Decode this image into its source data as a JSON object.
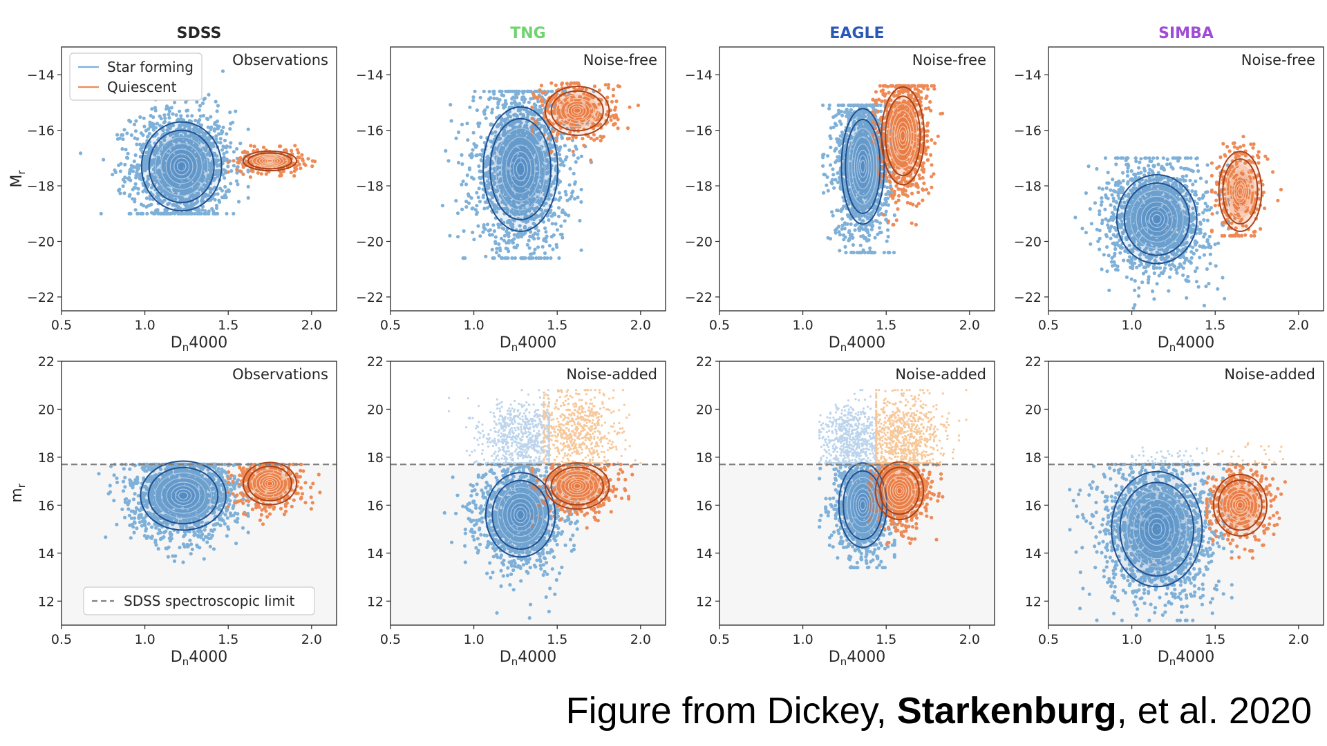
{
  "caption": {
    "prefix": "Figure from Dickey, ",
    "bold": "Starkenburg",
    "suffix": ", et al. 2020"
  },
  "colors": {
    "star_forming_points": "#7eb0d8",
    "star_forming_contour": "#1f4f8f",
    "quiescent_points": "#ee8a55",
    "quiescent_contour": "#a8421a",
    "star_forming_faint": "#bcd4ec",
    "quiescent_faint": "#f6c89a",
    "limit_line": "#808080",
    "limit_fill": "#f6f6f6"
  },
  "chart_data": [
    {
      "type": "scatter",
      "row": 0,
      "col": 0,
      "title": "SDSS",
      "title_color": "#262626",
      "corner_label": "Observations",
      "xlabel": "Dn4000",
      "ylabel": "Mr",
      "xlim": [
        0.5,
        2.15
      ],
      "ylim": [
        -13,
        -22.5
      ],
      "xticks": [
        0.5,
        1.0,
        1.5,
        2.0
      ],
      "yticks": [
        -22,
        -20,
        -18,
        -16,
        -14
      ],
      "legend": [
        "Star forming",
        "Quiescent"
      ],
      "series": [
        {
          "name": "Star forming",
          "center": [
            1.22,
            -17.3
          ],
          "spread": [
            0.15,
            1.0
          ],
          "n": 1500,
          "xrange": [
            0.55,
            1.62
          ],
          "yrange": [
            -19.0,
            -13.2
          ]
        },
        {
          "name": "Quiescent",
          "center": [
            1.75,
            -17.1
          ],
          "spread": [
            0.1,
            0.22
          ],
          "n": 250,
          "xrange": [
            1.5,
            2.02
          ],
          "yrange": [
            -17.7,
            -16.2
          ]
        }
      ]
    },
    {
      "type": "scatter",
      "row": 0,
      "col": 1,
      "title": "TNG",
      "title_color": "#6fd36f",
      "corner_label": "Noise-free",
      "xlabel": "Dn4000",
      "ylabel": "",
      "xlim": [
        0.5,
        2.15
      ],
      "ylim": [
        -13,
        -22.5
      ],
      "xticks": [
        0.5,
        1.0,
        1.5,
        2.0
      ],
      "yticks": [
        -22,
        -20,
        -18,
        -16,
        -14
      ],
      "series": [
        {
          "name": "Star forming",
          "center": [
            1.28,
            -17.4
          ],
          "spread": [
            0.14,
            1.4
          ],
          "n": 1700,
          "xrange": [
            0.62,
            1.72
          ],
          "yrange": [
            -20.6,
            -14.6
          ]
        },
        {
          "name": "Quiescent",
          "center": [
            1.62,
            -15.3
          ],
          "spread": [
            0.12,
            0.55
          ],
          "n": 350,
          "xrange": [
            1.35,
            2.1
          ],
          "yrange": [
            -19.0,
            -14.3
          ]
        }
      ]
    },
    {
      "type": "scatter",
      "row": 0,
      "col": 2,
      "title": "EAGLE",
      "title_color": "#2a58b8",
      "corner_label": "Noise-free",
      "xlabel": "Dn4000",
      "ylabel": "",
      "xlim": [
        0.5,
        2.15
      ],
      "ylim": [
        -13,
        -22.5
      ],
      "xticks": [
        0.5,
        1.0,
        1.5,
        2.0
      ],
      "yticks": [
        -22,
        -20,
        -18,
        -16,
        -14
      ],
      "series": [
        {
          "name": "Star forming",
          "center": [
            1.36,
            -17.3
          ],
          "spread": [
            0.08,
            1.3
          ],
          "n": 1400,
          "xrange": [
            1.12,
            1.55
          ],
          "yrange": [
            -20.4,
            -15.1
          ]
        },
        {
          "name": "Quiescent",
          "center": [
            1.6,
            -16.2
          ],
          "spread": [
            0.08,
            1.1
          ],
          "n": 800,
          "xrange": [
            1.42,
            1.95
          ],
          "yrange": [
            -19.4,
            -14.4
          ]
        }
      ]
    },
    {
      "type": "scatter",
      "row": 0,
      "col": 3,
      "title": "SIMBA",
      "title_color": "#9f4bd6",
      "corner_label": "Noise-free",
      "xlabel": "Dn4000",
      "ylabel": "",
      "xlim": [
        0.5,
        2.15
      ],
      "ylim": [
        -13,
        -22.5
      ],
      "xticks": [
        0.5,
        1.0,
        1.5,
        2.0
      ],
      "yticks": [
        -22,
        -20,
        -18,
        -16,
        -14
      ],
      "series": [
        {
          "name": "Star forming",
          "center": [
            1.15,
            -19.2
          ],
          "spread": [
            0.15,
            1.0
          ],
          "n": 1500,
          "xrange": [
            0.55,
            1.58
          ],
          "yrange": [
            -22.4,
            -17.0
          ]
        },
        {
          "name": "Quiescent",
          "center": [
            1.65,
            -18.2
          ],
          "spread": [
            0.08,
            0.9
          ],
          "n": 260,
          "xrange": [
            1.48,
            2.1
          ],
          "yrange": [
            -19.8,
            -15.8
          ]
        }
      ]
    },
    {
      "type": "scatter",
      "row": 1,
      "col": 0,
      "title": "",
      "corner_label": "Observations",
      "xlabel": "Dn4000",
      "ylabel": "mr",
      "xlim": [
        0.5,
        2.15
      ],
      "ylim": [
        22,
        11
      ],
      "xticks": [
        0.5,
        1.0,
        1.5,
        2.0
      ],
      "yticks": [
        12,
        14,
        16,
        18,
        20,
        22
      ],
      "spectroscopic_limit": 17.7,
      "limit_legend": "SDSS spectroscopic limit",
      "series": [
        {
          "name": "Star forming",
          "center": [
            1.23,
            16.4
          ],
          "spread": [
            0.16,
            0.9
          ],
          "n": 1500,
          "xrange": [
            0.52,
            1.62
          ],
          "yrange": [
            11.3,
            17.7
          ]
        },
        {
          "name": "Quiescent",
          "center": [
            1.75,
            16.9
          ],
          "spread": [
            0.1,
            0.55
          ],
          "n": 450,
          "xrange": [
            1.5,
            2.05
          ],
          "yrange": [
            14.6,
            17.7
          ]
        }
      ]
    },
    {
      "type": "scatter",
      "row": 1,
      "col": 1,
      "title": "",
      "corner_label": "Noise-added",
      "xlabel": "Dn4000",
      "ylabel": "",
      "xlim": [
        0.5,
        2.15
      ],
      "ylim": [
        22,
        11
      ],
      "xticks": [
        0.5,
        1.0,
        1.5,
        2.0
      ],
      "yticks": [
        12,
        14,
        16,
        18,
        20,
        22
      ],
      "spectroscopic_limit": 17.7,
      "series": [
        {
          "name": "Star forming",
          "center": [
            1.28,
            15.6
          ],
          "spread": [
            0.13,
            1.1
          ],
          "n": 1300,
          "xrange": [
            0.72,
            1.62
          ],
          "yrange": [
            11.3,
            17.7
          ]
        },
        {
          "name": "Quiescent",
          "center": [
            1.62,
            16.8
          ],
          "spread": [
            0.12,
            0.6
          ],
          "n": 450,
          "xrange": [
            1.35,
            1.95
          ],
          "yrange": [
            14.8,
            17.7
          ]
        },
        {
          "name": "Star forming (faint)",
          "center": [
            1.3,
            18.8
          ],
          "spread": [
            0.13,
            0.8
          ],
          "n": 700,
          "xrange": [
            0.85,
            1.45
          ],
          "yrange": [
            17.75,
            20.8
          ]
        },
        {
          "name": "Quiescent (faint)",
          "center": [
            1.62,
            19.0
          ],
          "spread": [
            0.13,
            0.9
          ],
          "n": 600,
          "xrange": [
            1.42,
            2.0
          ],
          "yrange": [
            17.75,
            20.8
          ]
        }
      ]
    },
    {
      "type": "scatter",
      "row": 1,
      "col": 2,
      "title": "",
      "corner_label": "Noise-added",
      "xlabel": "Dn4000",
      "ylabel": "",
      "xlim": [
        0.5,
        2.15
      ],
      "ylim": [
        22,
        11
      ],
      "xticks": [
        0.5,
        1.0,
        1.5,
        2.0
      ],
      "yticks": [
        12,
        14,
        16,
        18,
        20,
        22
      ],
      "spectroscopic_limit": 17.7,
      "series": [
        {
          "name": "Star forming",
          "center": [
            1.36,
            16.0
          ],
          "spread": [
            0.09,
            1.1
          ],
          "n": 1000,
          "xrange": [
            1.1,
            1.55
          ],
          "yrange": [
            13.4,
            17.7
          ]
        },
        {
          "name": "Quiescent",
          "center": [
            1.58,
            16.6
          ],
          "spread": [
            0.09,
            0.75
          ],
          "n": 700,
          "xrange": [
            1.4,
            1.95
          ],
          "yrange": [
            13.6,
            17.7
          ]
        },
        {
          "name": "Star forming (faint)",
          "center": [
            1.3,
            18.6
          ],
          "spread": [
            0.1,
            0.8
          ],
          "n": 700,
          "xrange": [
            1.1,
            1.44
          ],
          "yrange": [
            17.75,
            20.8
          ]
        },
        {
          "name": "Quiescent (faint)",
          "center": [
            1.6,
            18.8
          ],
          "spread": [
            0.12,
            0.9
          ],
          "n": 800,
          "xrange": [
            1.44,
            1.98
          ],
          "yrange": [
            17.75,
            20.8
          ]
        }
      ]
    },
    {
      "type": "scatter",
      "row": 1,
      "col": 3,
      "title": "",
      "corner_label": "Noise-added",
      "xlabel": "Dn4000",
      "ylabel": "",
      "xlim": [
        0.5,
        2.15
      ],
      "ylim": [
        22,
        11
      ],
      "xticks": [
        0.5,
        1.0,
        1.5,
        2.0
      ],
      "yticks": [
        12,
        14,
        16,
        18,
        20,
        22
      ],
      "spectroscopic_limit": 17.7,
      "series": [
        {
          "name": "Star forming",
          "center": [
            1.15,
            15.0
          ],
          "spread": [
            0.17,
            1.5
          ],
          "n": 1700,
          "xrange": [
            0.52,
            1.6
          ],
          "yrange": [
            11.2,
            17.7
          ]
        },
        {
          "name": "Quiescent",
          "center": [
            1.65,
            16.0
          ],
          "spread": [
            0.1,
            0.8
          ],
          "n": 400,
          "xrange": [
            1.45,
            1.97
          ],
          "yrange": [
            13.8,
            17.7
          ]
        },
        {
          "name": "Star forming (faint)",
          "center": [
            1.2,
            18.0
          ],
          "spread": [
            0.12,
            0.2
          ],
          "n": 40,
          "xrange": [
            1.0,
            1.45
          ],
          "yrange": [
            17.75,
            18.5
          ]
        },
        {
          "name": "Quiescent (faint)",
          "center": [
            1.65,
            18.1
          ],
          "spread": [
            0.12,
            0.3
          ],
          "n": 25,
          "xrange": [
            1.45,
            1.95
          ],
          "yrange": [
            17.75,
            18.8
          ]
        }
      ]
    }
  ]
}
